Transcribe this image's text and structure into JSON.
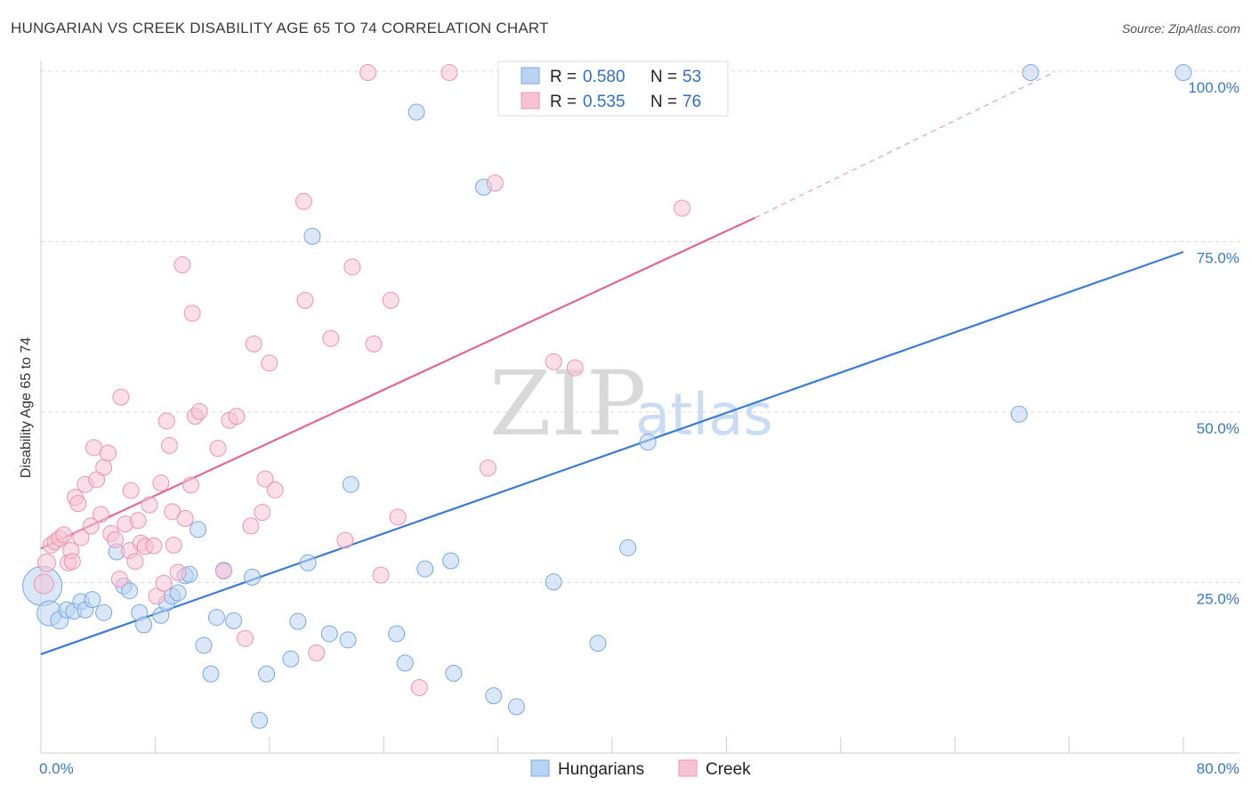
{
  "header": {
    "title": "HUNGARIAN VS CREEK DISABILITY AGE 65 TO 74 CORRELATION CHART",
    "source": "Source: ZipAtlas.com"
  },
  "legend_top": {
    "rows": [
      {
        "r_label": "R = ",
        "r_value": "0.580",
        "n_label": "N = ",
        "n_value": "53",
        "color": "#a8c8f0"
      },
      {
        "r_label": "R = ",
        "r_value": "0.535",
        "n_label": "N = ",
        "n_value": "76",
        "color": "#f5b8cb"
      }
    ]
  },
  "legend_bottom": {
    "items": [
      {
        "label": "Hungarians",
        "color": "#a8c8f0"
      },
      {
        "label": "Creek",
        "color": "#f5b8cb"
      }
    ]
  },
  "watermark": {
    "zip": "ZIP",
    "atlas": "atlas"
  },
  "colors": {
    "blue": "#3a7bd5",
    "blue_fill": "#b9d3f3",
    "pink": "#e0688f",
    "pink_fill": "#f7c3d3",
    "grid": "#d8d8d8",
    "axis_text": "#3a78c9"
  },
  "chart_data": {
    "type": "scatter",
    "title": "HUNGARIAN VS CREEK DISABILITY AGE 65 TO 74 CORRELATION CHART",
    "xlabel": "",
    "ylabel": "Disability Age 65 to 74",
    "xlim": [
      0,
      80
    ],
    "ylim": [
      0,
      100
    ],
    "x_tick_labels": [
      "0.0%",
      "80.0%"
    ],
    "y_tick_labels": [
      "25.0%",
      "50.0%",
      "75.0%",
      "100.0%"
    ],
    "y_ticks": [
      25,
      50,
      75,
      100
    ],
    "series": [
      {
        "name": "Hungarians",
        "r": 0.58,
        "n": 53,
        "trend": {
          "x0": 0,
          "y0": 14.5,
          "x1": 80,
          "y1": 73.5
        },
        "points": [
          [
            0.1,
            24.5,
            22
          ],
          [
            0.6,
            20.5,
            14
          ],
          [
            1.3,
            19.5,
            10
          ],
          [
            1.8,
            21.0,
            9
          ],
          [
            2.3,
            20.8,
            9
          ],
          [
            2.8,
            22.2,
            9
          ],
          [
            3.1,
            21.0,
            9
          ],
          [
            3.6,
            22.5,
            9
          ],
          [
            4.4,
            20.6,
            9
          ],
          [
            5.3,
            29.5,
            9
          ],
          [
            5.8,
            24.5,
            9
          ],
          [
            6.2,
            23.8,
            9
          ],
          [
            6.9,
            20.6,
            9
          ],
          [
            7.2,
            18.8,
            9
          ],
          [
            8.4,
            20.2,
            9
          ],
          [
            8.8,
            22.0,
            9
          ],
          [
            9.2,
            23.0,
            9
          ],
          [
            9.6,
            23.5,
            9
          ],
          [
            10.1,
            26.0,
            9
          ],
          [
            10.4,
            26.2,
            9
          ],
          [
            11.0,
            32.8,
            9
          ],
          [
            11.4,
            15.8,
            9
          ],
          [
            11.9,
            11.6,
            9
          ],
          [
            12.3,
            19.9,
            9
          ],
          [
            12.8,
            26.8,
            9
          ],
          [
            13.5,
            19.4,
            9
          ],
          [
            14.8,
            25.8,
            9
          ],
          [
            15.3,
            4.8,
            9
          ],
          [
            15.8,
            11.6,
            9
          ],
          [
            17.5,
            13.8,
            9
          ],
          [
            18.0,
            19.3,
            9
          ],
          [
            18.7,
            27.9,
            9
          ],
          [
            19.0,
            75.8,
            9
          ],
          [
            20.2,
            17.5,
            9
          ],
          [
            21.5,
            16.6,
            9
          ],
          [
            21.7,
            39.4,
            9
          ],
          [
            24.9,
            17.5,
            9
          ],
          [
            25.5,
            13.2,
            9
          ],
          [
            26.3,
            94.0,
            9
          ],
          [
            26.9,
            27.0,
            9
          ],
          [
            28.7,
            28.2,
            9
          ],
          [
            28.9,
            11.7,
            9
          ],
          [
            31.0,
            83.0,
            9
          ],
          [
            31.7,
            8.4,
            9
          ],
          [
            33.3,
            6.8,
            9
          ],
          [
            35.9,
            25.1,
            9
          ],
          [
            39.0,
            16.1,
            9
          ],
          [
            41.1,
            30.1,
            9
          ],
          [
            42.5,
            45.6,
            9
          ],
          [
            68.5,
            49.7,
            9
          ],
          [
            69.3,
            99.8,
            9
          ],
          [
            80.0,
            99.8,
            9
          ]
        ]
      },
      {
        "name": "Creek",
        "r": 0.535,
        "n": 76,
        "trend": {
          "x0": 0,
          "y0": 30.0,
          "x1": 50,
          "y1": 78.5
        },
        "trend_dashed": {
          "x0": 50,
          "y0": 78.5,
          "x1": 71,
          "y1": 99.9
        },
        "points": [
          [
            0.2,
            24.8,
            11
          ],
          [
            0.4,
            27.9,
            10
          ],
          [
            0.7,
            30.5,
            9
          ],
          [
            1.0,
            31.0,
            9
          ],
          [
            1.3,
            31.5,
            9
          ],
          [
            1.6,
            32.0,
            9
          ],
          [
            1.9,
            27.9,
            9
          ],
          [
            2.1,
            29.7,
            9
          ],
          [
            2.2,
            28.1,
            9
          ],
          [
            2.4,
            37.5,
            9
          ],
          [
            2.6,
            36.6,
            9
          ],
          [
            2.8,
            31.6,
            9
          ],
          [
            3.1,
            39.4,
            9
          ],
          [
            3.5,
            33.3,
            9
          ],
          [
            3.7,
            44.8,
            9
          ],
          [
            3.9,
            40.1,
            9
          ],
          [
            4.2,
            35.0,
            9
          ],
          [
            4.4,
            41.9,
            9
          ],
          [
            4.7,
            44.0,
            9
          ],
          [
            4.9,
            32.2,
            9
          ],
          [
            5.2,
            31.3,
            9
          ],
          [
            5.5,
            25.5,
            9
          ],
          [
            5.6,
            52.2,
            9
          ],
          [
            5.9,
            33.6,
            9
          ],
          [
            6.2,
            29.7,
            9
          ],
          [
            6.3,
            38.5,
            9
          ],
          [
            6.6,
            28.1,
            9
          ],
          [
            6.8,
            34.1,
            9
          ],
          [
            7.0,
            30.8,
            9
          ],
          [
            7.3,
            30.3,
            9
          ],
          [
            7.6,
            36.4,
            9
          ],
          [
            7.9,
            30.4,
            9
          ],
          [
            8.1,
            23.0,
            9
          ],
          [
            8.4,
            39.6,
            9
          ],
          [
            8.6,
            24.9,
            9
          ],
          [
            8.8,
            48.7,
            9
          ],
          [
            9.0,
            45.1,
            9
          ],
          [
            9.2,
            35.4,
            9
          ],
          [
            9.6,
            26.5,
            9
          ],
          [
            9.9,
            71.6,
            9
          ],
          [
            10.1,
            34.4,
            9
          ],
          [
            10.5,
            39.3,
            9
          ],
          [
            10.6,
            64.5,
            9
          ],
          [
            10.8,
            49.4,
            9
          ],
          [
            11.1,
            50.1,
            9
          ],
          [
            12.4,
            44.7,
            9
          ],
          [
            12.8,
            26.7,
            9
          ],
          [
            13.2,
            48.8,
            9
          ],
          [
            13.7,
            49.4,
            9
          ],
          [
            14.3,
            16.8,
            9
          ],
          [
            14.7,
            33.3,
            9
          ],
          [
            14.9,
            60.0,
            9
          ],
          [
            15.5,
            35.3,
            9
          ],
          [
            15.7,
            40.2,
            9
          ],
          [
            16.0,
            57.2,
            9
          ],
          [
            16.4,
            38.6,
            9
          ],
          [
            18.4,
            80.9,
            9
          ],
          [
            18.5,
            66.4,
            9
          ],
          [
            19.3,
            14.7,
            9
          ],
          [
            20.3,
            60.8,
            9
          ],
          [
            21.3,
            31.2,
            9
          ],
          [
            21.8,
            71.3,
            9
          ],
          [
            23.3,
            60.0,
            9
          ],
          [
            23.8,
            26.1,
            9
          ],
          [
            24.5,
            66.4,
            9
          ],
          [
            25.0,
            34.6,
            9
          ],
          [
            26.5,
            9.6,
            9
          ],
          [
            28.6,
            99.8,
            9
          ],
          [
            31.3,
            41.8,
            9
          ],
          [
            31.8,
            83.6,
            9
          ],
          [
            35.9,
            57.4,
            9
          ],
          [
            37.4,
            56.5,
            9
          ],
          [
            44.9,
            79.9,
            9
          ],
          [
            22.9,
            99.8,
            9
          ],
          [
            9.3,
            30.5,
            9
          ]
        ]
      }
    ]
  }
}
